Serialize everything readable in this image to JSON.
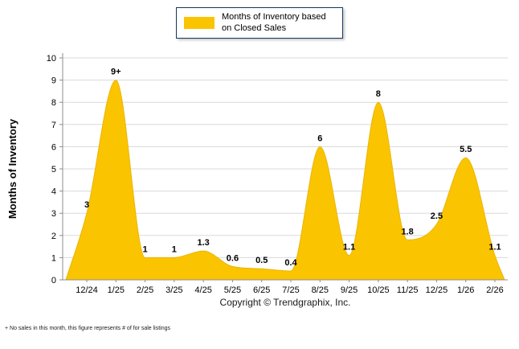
{
  "legend": {
    "label": "Months of Inventory based on Closed Sales"
  },
  "copyright": "Copyright © Trendgraphix, Inc.",
  "footnote": "+  No sales in this month, this figure represents # of for sale listings",
  "colors": {
    "area": "#FBC400",
    "area_edge": "#E9B501",
    "grid": "#DADADA",
    "axis": "#8C8C8C",
    "legend_border": "#17375E",
    "text": "#000000"
  },
  "chart_data": {
    "type": "area",
    "title": "Months of Inventory based on Closed Sales",
    "ylabel": "Months of Inventory",
    "xlabel": "",
    "categories": [
      "12/24",
      "1/25",
      "2/25",
      "3/25",
      "4/25",
      "5/25",
      "6/25",
      "7/25",
      "8/25",
      "9/25",
      "10/25",
      "11/25",
      "12/25",
      "1/26",
      "2/26"
    ],
    "values": [
      3,
      9,
      1,
      1,
      1.3,
      0.6,
      0.5,
      0.4,
      6,
      1.1,
      8,
      1.8,
      2.5,
      5.5,
      1.1
    ],
    "labels": [
      "3",
      "9+",
      "1",
      "1",
      "1.3",
      "0.6",
      "0.5",
      "0.4",
      "6",
      "1.1",
      "8",
      "1.8",
      "2.5",
      "5.5",
      "1.1"
    ],
    "ylim": [
      0,
      10
    ],
    "yticks": [
      0,
      1,
      2,
      3,
      4,
      5,
      6,
      7,
      8,
      9,
      10
    ],
    "grid": true,
    "legend_position": "top-center"
  }
}
